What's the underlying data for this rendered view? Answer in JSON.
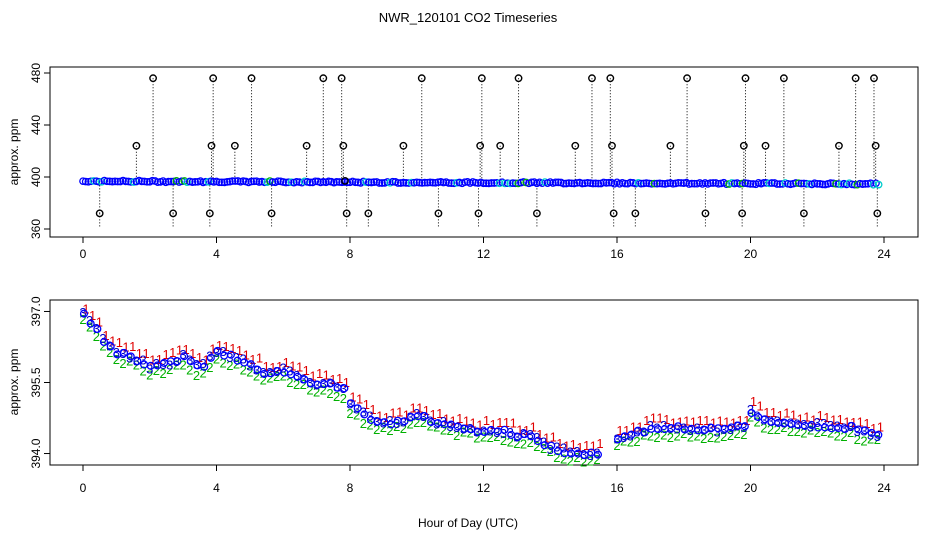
{
  "title": "NWR_120101  CO2 Timeseries",
  "colors": {
    "axis": "#000000",
    "flag1": "#e00000",
    "flag2": "#00b000",
    "flag3": "#0000cc",
    "flask": "#00cccc",
    "main": "#0000ff",
    "drop": "#000000"
  },
  "chart_data": [
    {
      "type": "scatter",
      "panel": "top",
      "title": "",
      "xlabel": "",
      "ylabel": "approx. ppm",
      "xlim": [
        0,
        24
      ],
      "ylim": [
        357,
        483
      ],
      "xticks": [
        0,
        4,
        8,
        12,
        16,
        20,
        24
      ],
      "yticks": [
        360,
        400,
        440,
        480
      ],
      "baseline_start": 396.8,
      "baseline_end": 394.6,
      "outlier_hours": [
        0.5,
        1.6,
        2.1,
        2.7,
        3.8,
        3.85,
        3.9,
        4.55,
        5.05,
        5.65,
        6.7,
        7.2,
        7.75,
        7.8,
        7.85,
        7.9,
        8.55,
        9.6,
        10.15,
        10.65,
        11.85,
        11.9,
        11.95,
        12.5,
        13.05,
        13.6,
        14.75,
        15.25,
        15.8,
        15.85,
        15.9,
        16.55,
        17.6,
        18.1,
        18.65,
        19.75,
        19.8,
        19.85,
        20.45,
        21.0,
        21.6,
        22.65,
        23.15,
        23.7,
        23.75,
        23.8
      ],
      "outlier_values": [
        372,
        424,
        476,
        372,
        372,
        424,
        476,
        424,
        476,
        372,
        424,
        476,
        476,
        424,
        397,
        372,
        372,
        424,
        476,
        372,
        372,
        424,
        476,
        424,
        476,
        372,
        424,
        476,
        476,
        424,
        372,
        372,
        424,
        476,
        372,
        372,
        424,
        476,
        424,
        476,
        372,
        424,
        476,
        476,
        424,
        372
      ]
    },
    {
      "type": "scatter",
      "panel": "bottom",
      "title": "",
      "xlabel": "Hour of Day (UTC)",
      "ylabel": "approx. ppm",
      "xlim": [
        0,
        24
      ],
      "ylim": [
        393.8,
        397.2
      ],
      "xticks": [
        0,
        4,
        8,
        12,
        16,
        20,
        24
      ],
      "yticks": [
        394.0,
        395.5,
        397.0
      ],
      "ytick_labels": [
        "394.0",
        "395.5",
        "397.0"
      ],
      "series": [
        {
          "name": "1",
          "offset": 0.15
        },
        {
          "name": "2",
          "offset": -0.15
        },
        {
          "name": "3",
          "offset": 0.0
        }
      ],
      "trend_hours": [
        0.0,
        0.3,
        0.6,
        1.0,
        1.5,
        2.0,
        2.5,
        3.0,
        3.5,
        4.0,
        4.5,
        5.0,
        5.5,
        6.0,
        6.5,
        7.0,
        7.5,
        7.8,
        8.0,
        8.3,
        8.8,
        9.5,
        10.0,
        10.5,
        11.0,
        11.5,
        12.0,
        12.5,
        13.0,
        13.5,
        14.0,
        14.5,
        15.0,
        15.5,
        15.9,
        16.0,
        16.5,
        17.0,
        18.0,
        19.0,
        19.8,
        20.0,
        20.3,
        21.0,
        22.0,
        23.0,
        23.8
      ],
      "trend_values": [
        396.85,
        396.6,
        396.3,
        396.05,
        395.95,
        395.75,
        395.8,
        395.95,
        395.7,
        396.05,
        395.95,
        395.8,
        395.6,
        395.65,
        395.5,
        395.4,
        395.35,
        395.25,
        394.95,
        394.8,
        394.55,
        394.6,
        394.7,
        394.6,
        394.5,
        394.45,
        394.4,
        394.4,
        394.3,
        394.25,
        394.05,
        393.95,
        393.9,
        393.95,
        394.1,
        394.2,
        394.35,
        394.45,
        394.45,
        394.4,
        394.5,
        394.8,
        394.65,
        394.55,
        394.5,
        394.45,
        394.3
      ]
    }
  ]
}
